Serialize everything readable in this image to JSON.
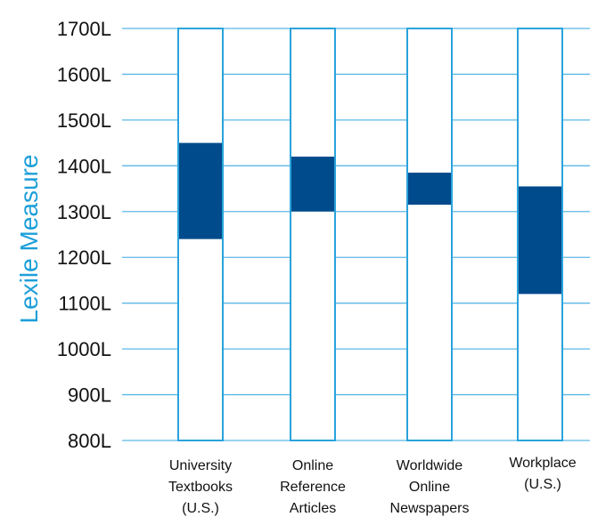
{
  "chart_data": {
    "type": "bar",
    "subtype": "floating-range",
    "ylabel": "Lexile Measure",
    "ylim": [
      800,
      1700
    ],
    "yticks": [
      800,
      900,
      1000,
      1100,
      1200,
      1300,
      1400,
      1500,
      1600,
      1700
    ],
    "ytick_labels": [
      "800L",
      "900L",
      "1000L",
      "1100L",
      "1200L",
      "1300L",
      "1400L",
      "1500L",
      "1600L",
      "1700L"
    ],
    "grid": true,
    "categories": [
      [
        "University",
        "Textbooks",
        "(U.S.)"
      ],
      [
        "Online",
        "Reference",
        "Articles"
      ],
      [
        "Worldwide",
        "Online",
        "Newspapers"
      ],
      [
        "Workplace",
        "(U.S.)"
      ]
    ],
    "ranges": [
      {
        "low": 1240,
        "high": 1450
      },
      {
        "low": 1300,
        "high": 1420
      },
      {
        "low": 1315,
        "high": 1385
      },
      {
        "low": 1120,
        "high": 1355
      }
    ],
    "colors": {
      "accent": "#29a3dc",
      "range_fill": "#004b8c",
      "grid": "#5bb8e6",
      "axis_title": "#1d9fd9"
    }
  }
}
